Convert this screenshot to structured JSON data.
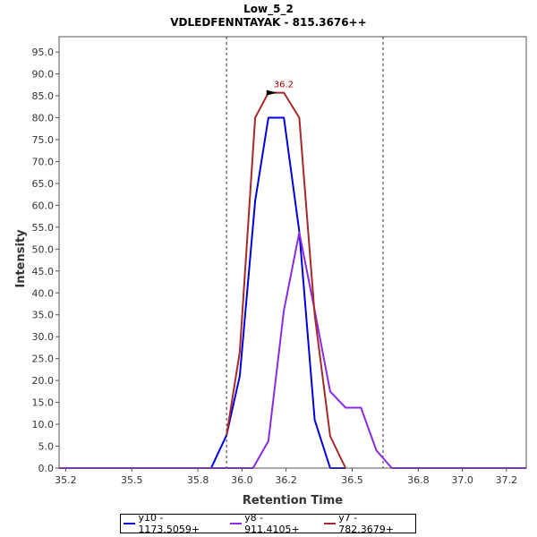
{
  "chart_data": {
    "type": "line",
    "title": "Low_5_2",
    "subtitle": "VDLEDFENNTAYAK - 815.3676++",
    "xlabel": "Retention Time",
    "ylabel": "Intensity",
    "xlim": [
      35.17,
      37.29
    ],
    "ylim": [
      0,
      98.5
    ],
    "xticks": [
      35.2,
      35.5,
      35.8,
      36.0,
      36.2,
      36.5,
      36.8,
      37.0,
      37.2
    ],
    "yticks": [
      0.0,
      5.0,
      10.0,
      15.0,
      20.0,
      25.0,
      30.0,
      35.0,
      40.0,
      45.0,
      50.0,
      55.0,
      60.0,
      65.0,
      70.0,
      75.0,
      80.0,
      85.0,
      90.0,
      95.0
    ],
    "xtick_labels": [
      "35.2",
      "35.5",
      "35.8",
      "36.0",
      "36.2",
      "36.5",
      "36.8",
      "37.0",
      "37.2"
    ],
    "ytick_labels": [
      "0.0",
      "5.0",
      "10.0",
      "15.0",
      "20.0",
      "25.0",
      "30.0",
      "35.0",
      "40.0",
      "45.0",
      "50.0",
      "55.0",
      "60.0",
      "65.0",
      "70.0",
      "75.0",
      "80.0",
      "85.0",
      "90.0",
      "95.0"
    ],
    "vlines": [
      35.93,
      36.64
    ],
    "annotation": {
      "text": "36.2",
      "x": 36.16,
      "y": 85.7,
      "color": "#a00000"
    },
    "series": [
      {
        "name": "y10 - 1173.5059+",
        "color": "#0000dd",
        "x": [
          35.17,
          35.86,
          35.93,
          35.99,
          36.06,
          36.12,
          36.19,
          36.26,
          36.33,
          36.4,
          36.47
        ],
        "y": [
          0.0,
          0.0,
          7.5,
          21.0,
          61.0,
          80.0,
          80.0,
          54.0,
          11.0,
          0.0,
          0.0
        ]
      },
      {
        "name": "y8 - 911.4105+",
        "color": "#8a2be2",
        "x": [
          35.17,
          36.05,
          36.12,
          36.19,
          36.26,
          36.33,
          36.4,
          36.47,
          36.54,
          36.61,
          36.68,
          36.75,
          37.29
        ],
        "y": [
          0.0,
          0.0,
          6.2,
          36.0,
          53.8,
          36.0,
          17.5,
          13.8,
          13.8,
          4.0,
          0.0,
          0.0,
          0.0
        ]
      },
      {
        "name": "y7 - 782.3679+",
        "color": "#a52a2a",
        "x": [
          35.93,
          35.99,
          36.06,
          36.12,
          36.19,
          36.26,
          36.33,
          36.4,
          36.47
        ],
        "y": [
          7.5,
          26.5,
          80.0,
          85.7,
          85.7,
          80.0,
          35.0,
          7.3,
          0.0
        ]
      }
    ]
  },
  "legend": {
    "items": [
      {
        "label": "y10 - 1173.5059+",
        "color": "#0000dd"
      },
      {
        "label": "y8 - 911.4105+",
        "color": "#8a2be2"
      },
      {
        "label": "y7 - 782.3679+",
        "color": "#a52a2a"
      }
    ]
  }
}
